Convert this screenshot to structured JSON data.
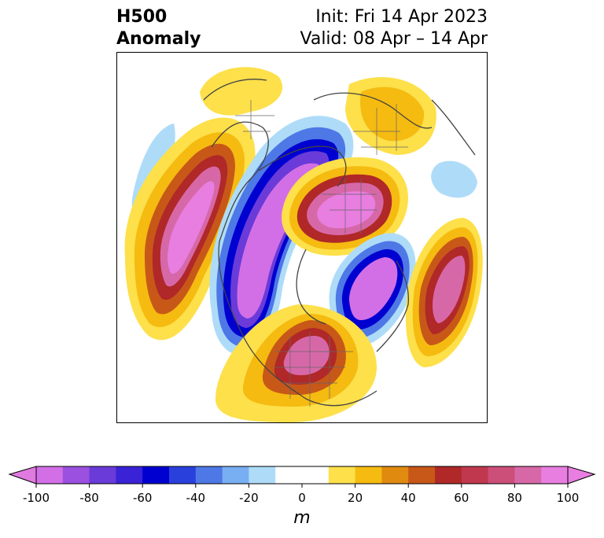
{
  "title": {
    "left_line1": "H500",
    "left_line2": "Anomaly",
    "right_line1": "Init: Fri 14 Apr 2023",
    "right_line2": "Valid: 08 Apr – 14 Apr"
  },
  "colorbar": {
    "units": "m",
    "ticks": [
      "-100",
      "-80",
      "-60",
      "-40",
      "-20",
      "0",
      "20",
      "40",
      "60",
      "80",
      "100"
    ],
    "min_color": "#e07ae0",
    "max_color": "#e87ee0",
    "colors": [
      "#d36fe6",
      "#9b50e0",
      "#6a3bd8",
      "#3a22d6",
      "#0000d0",
      "#2a40dc",
      "#4e78e6",
      "#78aef2",
      "#aedcf8",
      "#ffffff",
      "#ffffff",
      "#fde04a",
      "#f5bb10",
      "#e08a10",
      "#c85818",
      "#b02828",
      "#c0384e",
      "#cc4f79",
      "#d768a8",
      "#e87ee0"
    ]
  },
  "map": {
    "projection": "north-polar-stereographic",
    "field": "500 hPa height anomaly"
  }
}
